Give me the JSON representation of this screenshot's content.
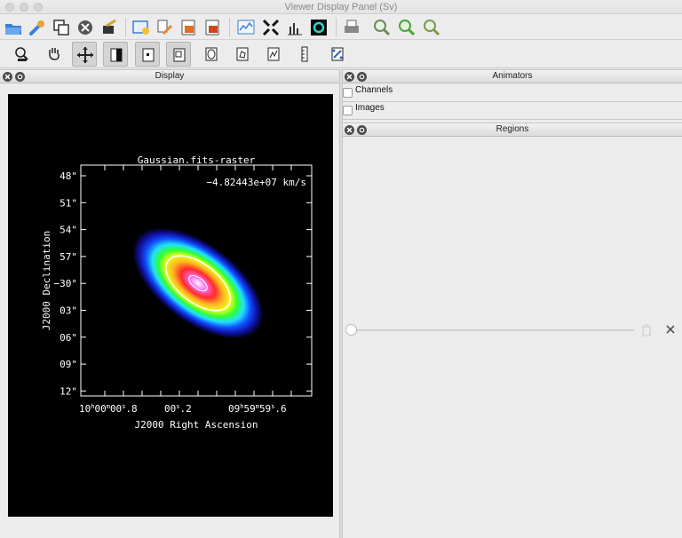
{
  "window": {
    "title": "Viewer Display Panel (Sv)"
  },
  "toolbar_main": [
    {
      "name": "open-folder-icon"
    },
    {
      "name": "wrench-icon"
    },
    {
      "name": "copy-panel-icon"
    },
    {
      "name": "close-panel-icon"
    },
    {
      "name": "unload-icon"
    },
    {
      "name": "data-manager-icon"
    },
    {
      "name": "adjust-icon"
    },
    {
      "name": "save-image-icon"
    },
    {
      "name": "print-export-icon"
    },
    {
      "name": "spectral-profile-icon"
    },
    {
      "name": "fit-icon"
    },
    {
      "name": "histogram-icon"
    },
    {
      "name": "region-statistics-icon"
    },
    {
      "name": "printer-icon"
    },
    {
      "name": "zoom-in-icon"
    },
    {
      "name": "zoom-out-icon"
    },
    {
      "name": "zoom-reset-icon"
    }
  ],
  "toolbar_mouse": [
    {
      "name": "zoom-tool-icon",
      "active": false
    },
    {
      "name": "pan-tool-icon",
      "active": false
    },
    {
      "name": "move-tool-icon",
      "active": true
    },
    {
      "name": "contrast-tool-icon",
      "active": true
    },
    {
      "name": "point-tool-icon",
      "active": true
    },
    {
      "name": "rectangle-region-icon",
      "active": true
    },
    {
      "name": "ellipse-region-icon",
      "active": false
    },
    {
      "name": "polygon-region-icon",
      "active": false
    },
    {
      "name": "polyline-icon",
      "active": false
    },
    {
      "name": "ruler-icon",
      "active": false
    },
    {
      "name": "position-velocity-icon",
      "active": false
    }
  ],
  "panels": {
    "display": {
      "title": "Display"
    },
    "animators": {
      "title": "Animators",
      "items": [
        "Channels",
        "Images"
      ]
    },
    "regions": {
      "title": "Regions"
    }
  },
  "plot": {
    "title": "Gaussian.fits-raster",
    "annotation": "−4.82443e+07 km/s",
    "xlabel": "J2000 Right Ascension",
    "ylabel": "J2000 Declination",
    "y_ticks": [
      "48\"",
      "51\"",
      "54\"",
      "57\"",
      "−30°",
      "03\"",
      "06\"",
      "09\"",
      "12\""
    ],
    "x_ticks": [
      "10h00m00s.8",
      "00s.2",
      "09h59m59s.6"
    ]
  }
}
